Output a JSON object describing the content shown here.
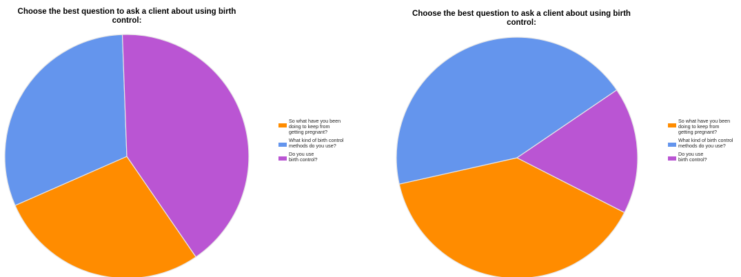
{
  "colors": {
    "orange": "#FF8C00",
    "blue": "#6495ED",
    "purple": "#BA55D3",
    "slice_border": "#E6E6E6"
  },
  "chart_data": [
    {
      "type": "pie",
      "title": "Choose the best question to ask a client about using birth control:",
      "legend_position": "right",
      "categories": [
        "So what have you been\ndoing to keep from\ngetting pregnant?",
        "What kind of birth control\nmethods do you use?",
        "Do you use\nbirth control?"
      ],
      "values": [
        28,
        31,
        41
      ],
      "colors": [
        "#FF8C00",
        "#6495ED",
        "#BA55D3"
      ]
    },
    {
      "type": "pie",
      "title": "Choose the best question to ask a client about using birth control:",
      "legend_position": "right",
      "categories": [
        "So what have you been\ndoing to keep from\ngetting pregnant?",
        "What kind of birth control\nmethods do you use?",
        "Do you use\nbirth control?"
      ],
      "values": [
        39,
        44,
        17
      ],
      "colors": [
        "#FF8C00",
        "#6495ED",
        "#BA55D3"
      ]
    }
  ]
}
